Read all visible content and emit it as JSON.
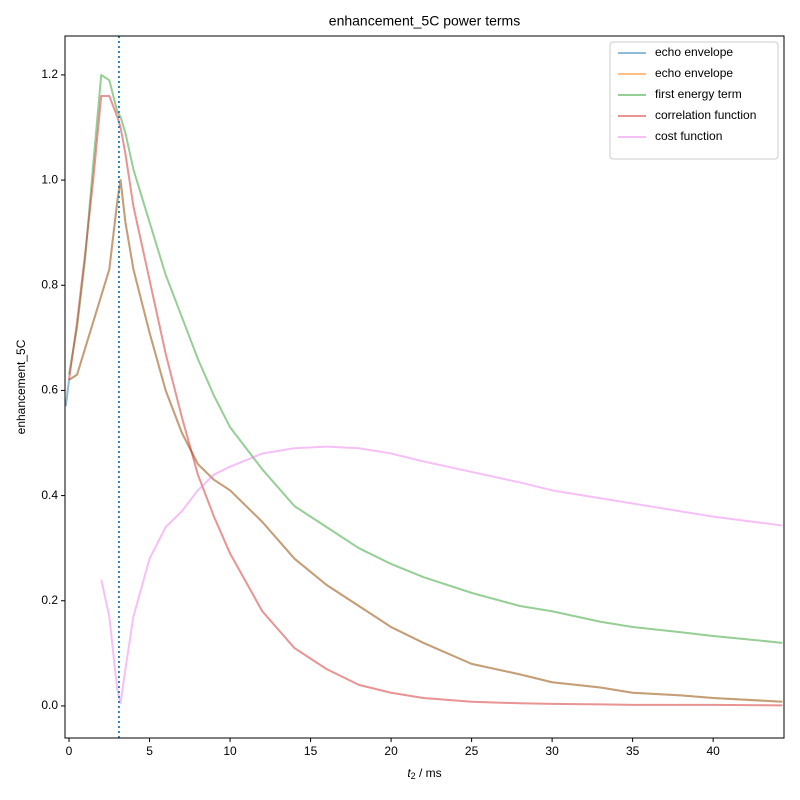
{
  "chart_data": {
    "type": "line",
    "title": "enhancement_5C power terms",
    "xlabel_parts": [
      "t",
      "2",
      " / ms"
    ],
    "ylabel": "enhancement_5C",
    "x": [
      -0.2,
      0,
      0.5,
      1,
      1.5,
      2,
      2.5,
      3,
      3.2,
      3.5,
      4,
      5,
      6,
      7,
      8,
      9,
      10,
      12,
      14,
      16,
      18,
      20,
      22,
      25,
      28,
      30,
      33,
      35,
      38,
      40,
      44.3
    ],
    "series": [
      {
        "name": "echo envelope",
        "color": "#1f77b4",
        "values": [
          0.57,
          0.62,
          0.63,
          0.68,
          0.73,
          0.78,
          0.83,
          0.96,
          1.0,
          0.92,
          0.83,
          0.71,
          0.6,
          0.52,
          0.46,
          0.43,
          0.41,
          0.35,
          0.28,
          0.23,
          0.19,
          0.15,
          0.12,
          0.08,
          0.06,
          0.045,
          0.035,
          0.025,
          0.02,
          0.015,
          0.008
        ]
      },
      {
        "name": "echo envelope",
        "color": "#ff7f0e",
        "values": [
          null,
          0.62,
          0.63,
          0.68,
          0.73,
          0.78,
          0.83,
          0.96,
          1.0,
          0.92,
          0.83,
          0.71,
          0.6,
          0.52,
          0.46,
          0.43,
          0.41,
          0.35,
          0.28,
          0.23,
          0.19,
          0.15,
          0.12,
          0.08,
          0.06,
          0.045,
          0.035,
          0.025,
          0.02,
          0.015,
          0.008
        ]
      },
      {
        "name": "first energy term",
        "color": "#2ca02c",
        "values": [
          null,
          0.63,
          0.72,
          0.85,
          1.03,
          1.2,
          1.19,
          1.13,
          1.12,
          1.09,
          1.02,
          0.92,
          0.82,
          0.74,
          0.66,
          0.59,
          0.53,
          0.45,
          0.38,
          0.34,
          0.3,
          0.27,
          0.245,
          0.215,
          0.19,
          0.18,
          0.16,
          0.15,
          0.14,
          0.133,
          0.12
        ]
      },
      {
        "name": "correlation function",
        "color": "#d62728",
        "values": [
          null,
          0.62,
          0.73,
          0.86,
          1.0,
          1.16,
          1.16,
          1.12,
          1.1,
          1.05,
          0.95,
          0.81,
          0.67,
          0.55,
          0.44,
          0.36,
          0.29,
          0.18,
          0.11,
          0.07,
          0.04,
          0.025,
          0.015,
          0.008,
          0.005,
          0.004,
          0.003,
          0.002,
          0.002,
          0.002,
          0.001
        ]
      },
      {
        "name": "cost function",
        "color": "#ee82ee",
        "values": [
          null,
          null,
          null,
          null,
          null,
          0.24,
          0.17,
          0.03,
          0.005,
          0.07,
          0.17,
          0.28,
          0.34,
          0.37,
          0.41,
          0.44,
          0.455,
          0.48,
          0.49,
          0.493,
          0.49,
          0.48,
          0.465,
          0.445,
          0.425,
          0.41,
          0.395,
          0.385,
          0.37,
          0.36,
          0.343
        ]
      }
    ],
    "alpha": 0.5,
    "vline": {
      "x": 3.1,
      "color": "#1f77b4"
    },
    "xlim": [
      -0.25,
      44.4
    ],
    "ylim": [
      -0.061,
      1.274
    ],
    "xticks": [
      0,
      5,
      10,
      15,
      20,
      25,
      30,
      35,
      40
    ],
    "yticks": [
      {
        "value": 0,
        "label": "0.0"
      },
      0.2,
      0.4,
      0.6,
      0.8,
      {
        "value": 1,
        "label": "1.0"
      },
      1.2
    ],
    "legend": "upper right"
  }
}
